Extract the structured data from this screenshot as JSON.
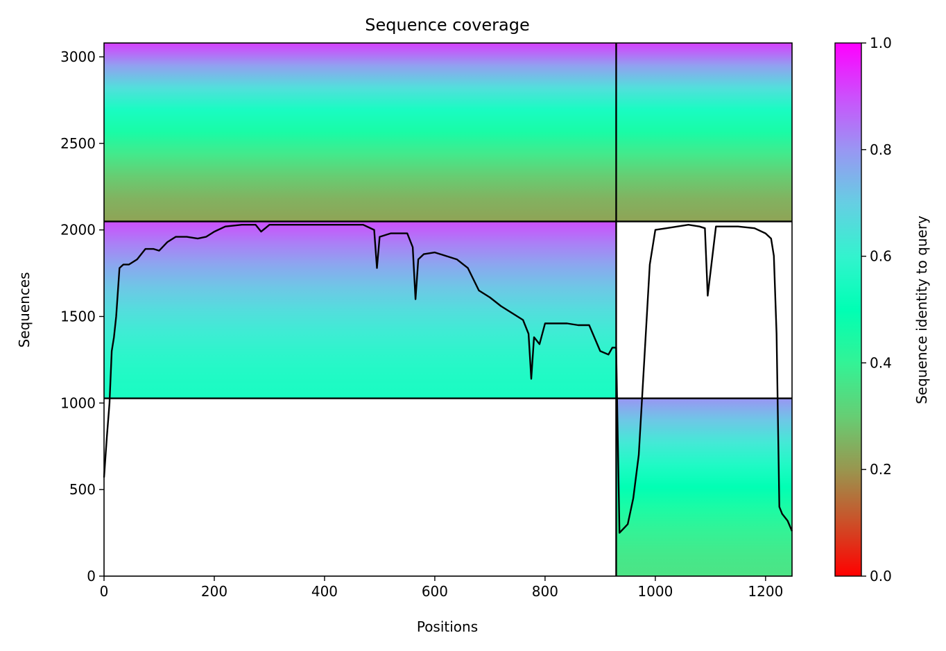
{
  "chart_data": {
    "type": "heatmap",
    "title": "Sequence coverage",
    "xlabel": "Positions",
    "ylabel": "Sequences",
    "xlim": [
      0,
      1248
    ],
    "ylim": [
      0,
      3080
    ],
    "x_ticks": [
      "0",
      "200",
      "400",
      "600",
      "800",
      "1000",
      "1200"
    ],
    "y_ticks": [
      "0",
      "500",
      "1000",
      "1500",
      "2000",
      "2500",
      "3000"
    ],
    "colorbar": {
      "label": "Sequence identity to query",
      "range": [
        0,
        1
      ],
      "ticks": [
        "0.0",
        "0.2",
        "0.4",
        "0.6",
        "0.8",
        "1.0"
      ],
      "colormap": "rainbow_r"
    },
    "chain_boundaries_x": [
      929
    ],
    "group_boundaries_y": [
      1027,
      2049
    ],
    "coverage_blocks": [
      {
        "x_start": 0,
        "x_end": 929,
        "y_start": 2049,
        "y_end": 3080,
        "identity_low": 0.22,
        "identity_high": 0.92
      },
      {
        "x_start": 929,
        "x_end": 1248,
        "y_start": 2049,
        "y_end": 3080,
        "identity_low": 0.22,
        "identity_high": 0.92
      },
      {
        "x_start": 0,
        "x_end": 929,
        "y_start": 1027,
        "y_end": 2049,
        "identity_low": 0.55,
        "identity_high": 0.9
      },
      {
        "x_start": 929,
        "x_end": 1248,
        "y_start": 0,
        "y_end": 1027,
        "identity_low": 0.35,
        "identity_high": 0.8
      }
    ],
    "coverage_line": {
      "name": "",
      "x": [
        0,
        5,
        10,
        14,
        18,
        22,
        28,
        35,
        45,
        60,
        75,
        90,
        100,
        115,
        130,
        150,
        170,
        185,
        200,
        220,
        250,
        275,
        285,
        300,
        350,
        400,
        450,
        470,
        490,
        495,
        500,
        520,
        550,
        560,
        565,
        570,
        580,
        600,
        640,
        660,
        680,
        700,
        720,
        740,
        760,
        770,
        775,
        780,
        790,
        800,
        820,
        840,
        860,
        880,
        900,
        915,
        922,
        929,
        935,
        950,
        960,
        970,
        980,
        990,
        1000,
        1020,
        1040,
        1060,
        1080,
        1090,
        1095,
        1110,
        1150,
        1180,
        1200,
        1210,
        1215,
        1220,
        1225,
        1230,
        1240,
        1248
      ],
      "y": [
        570,
        800,
        1000,
        1300,
        1380,
        1500,
        1780,
        1800,
        1800,
        1830,
        1890,
        1890,
        1880,
        1930,
        1960,
        1960,
        1950,
        1960,
        1990,
        2020,
        2030,
        2030,
        1990,
        2030,
        2030,
        2030,
        2030,
        2030,
        2000,
        1780,
        1960,
        1980,
        1980,
        1900,
        1600,
        1830,
        1860,
        1870,
        1830,
        1780,
        1650,
        1610,
        1560,
        1520,
        1480,
        1400,
        1140,
        1380,
        1340,
        1460,
        1460,
        1460,
        1450,
        1450,
        1300,
        1280,
        1320,
        1320,
        250,
        300,
        450,
        700,
        1250,
        1800,
        2000,
        2010,
        2020,
        2030,
        2020,
        2010,
        1620,
        2020,
        2020,
        2010,
        1980,
        1950,
        1850,
        1400,
        400,
        360,
        320,
        260
      ]
    }
  }
}
